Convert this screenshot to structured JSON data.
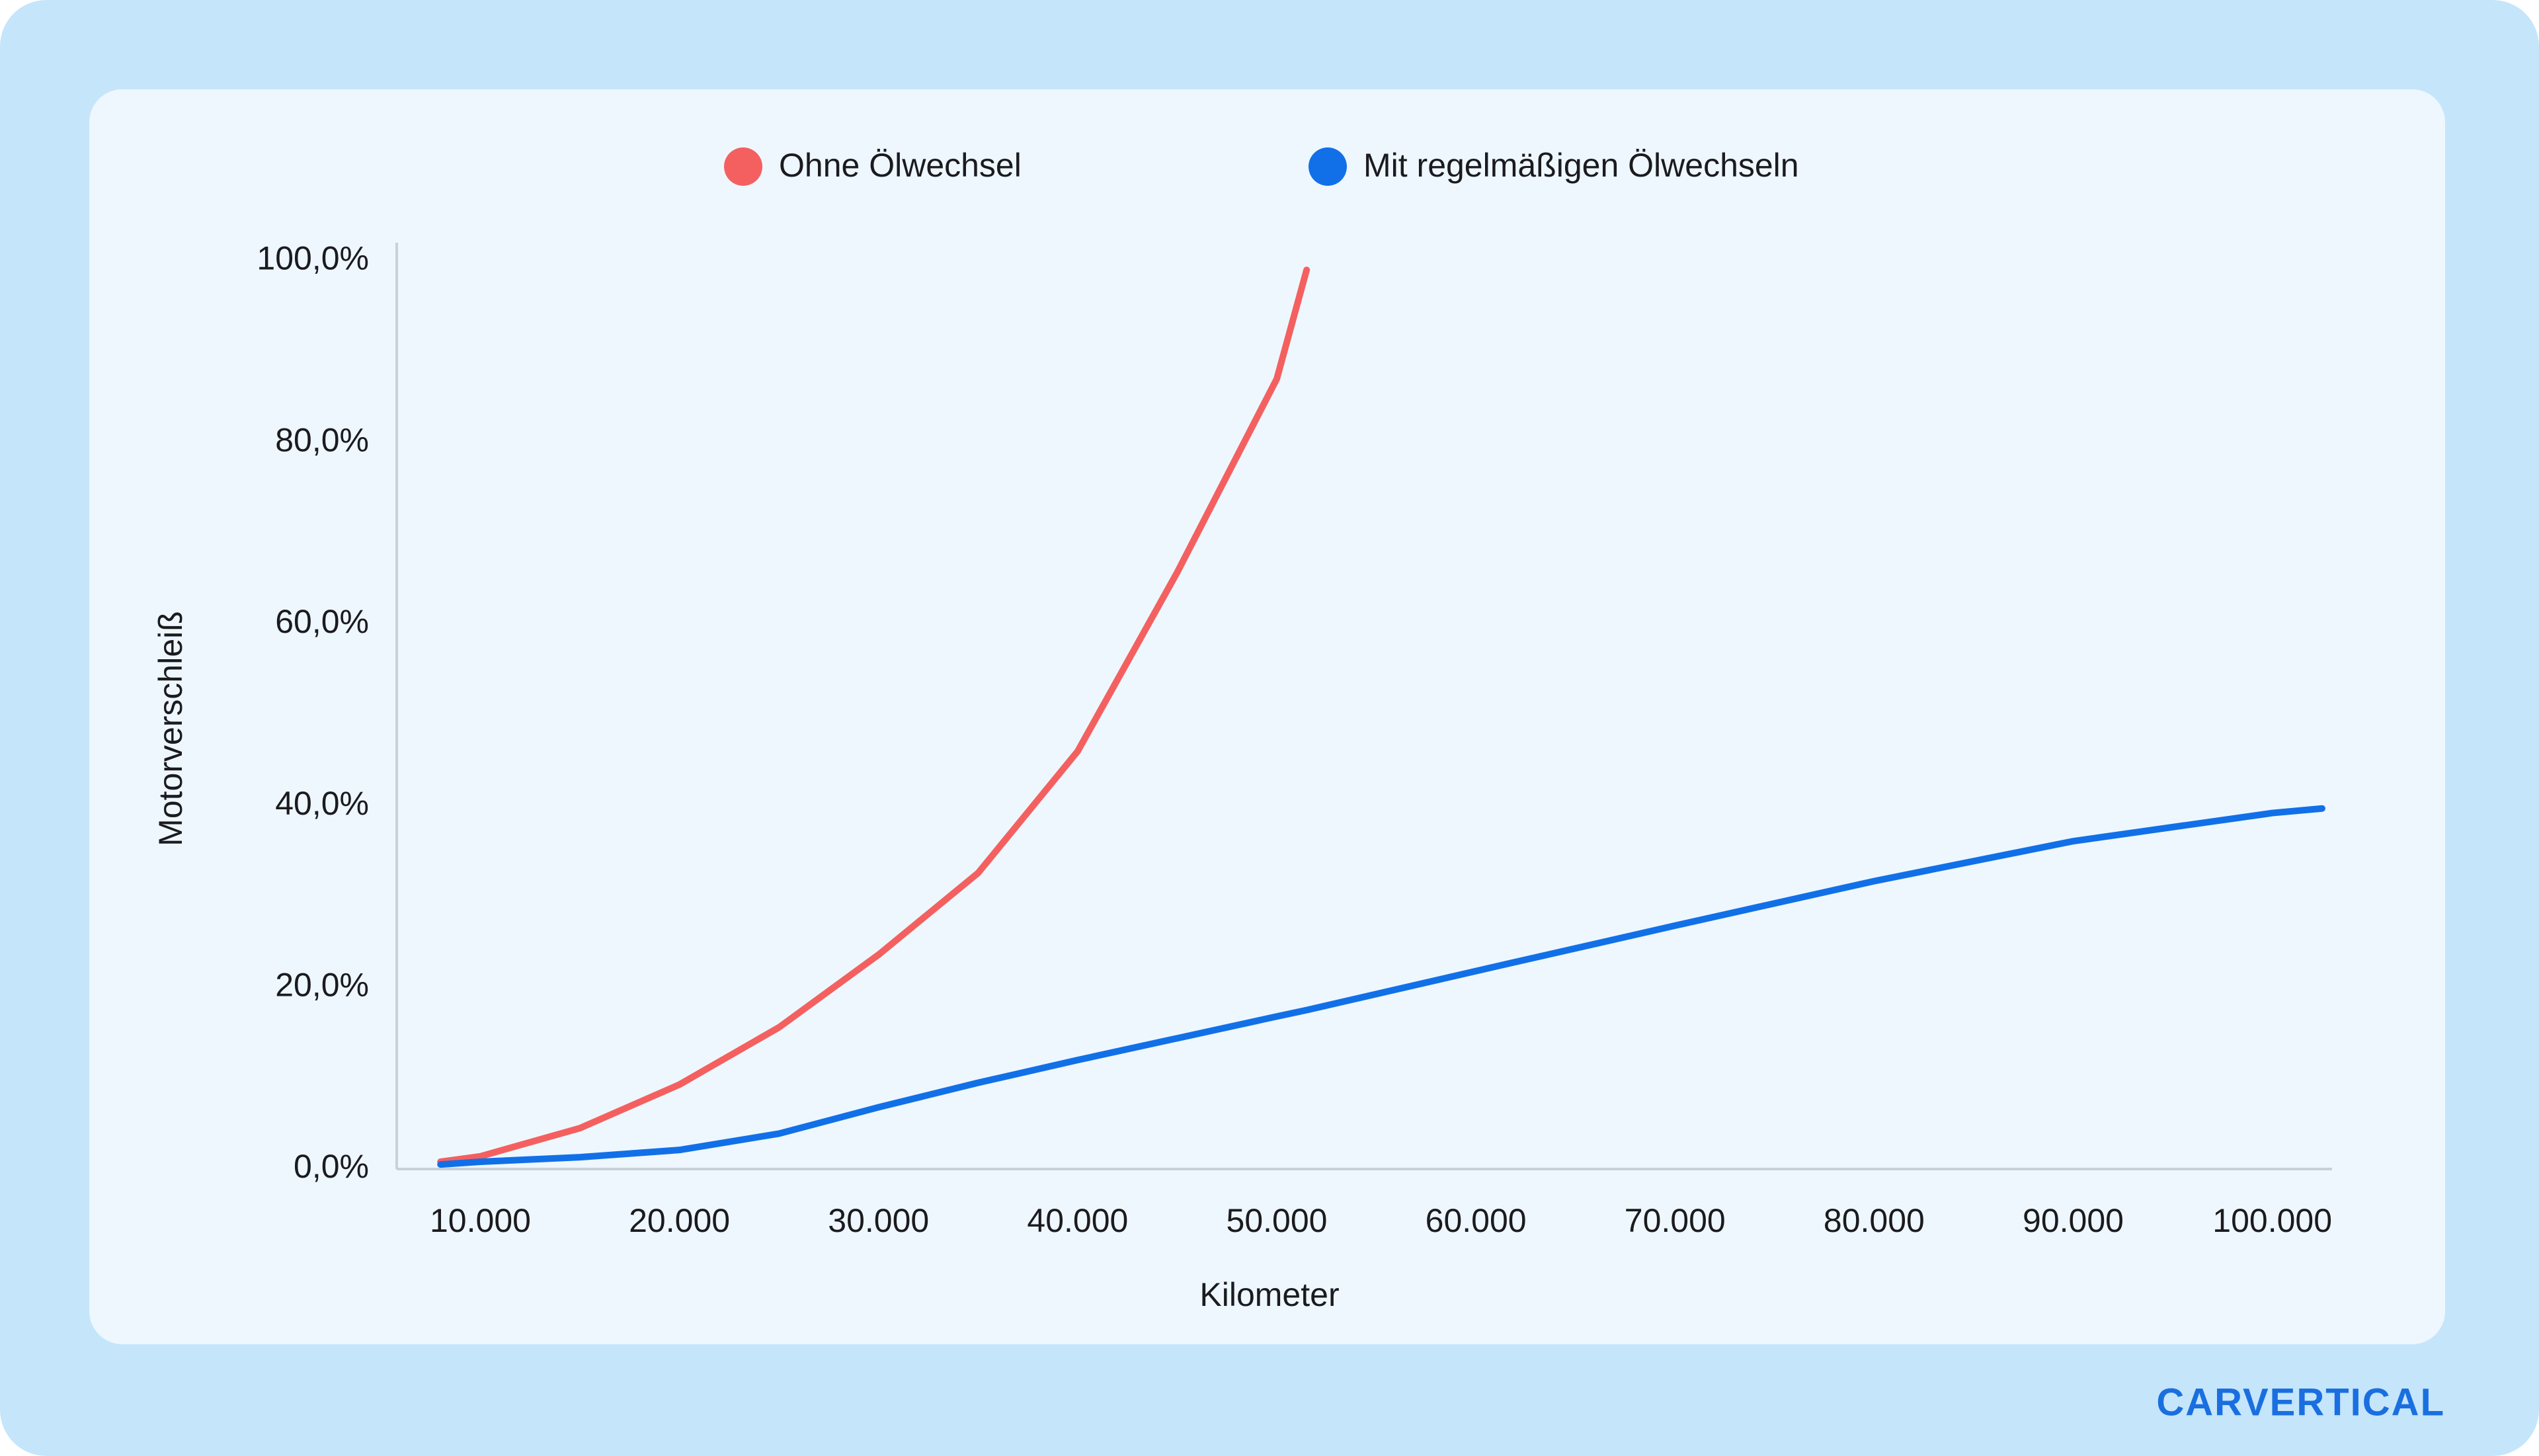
{
  "chart_data": {
    "type": "line",
    "y_label": "Motorverschleiß",
    "x_label": "Kilometer",
    "logo": "CARVERTICAL",
    "legend_position": "top",
    "grid": false,
    "x": [
      8000,
      10000,
      15000,
      20000,
      25000,
      30000,
      35000,
      40000,
      45000,
      50000,
      51500,
      60000,
      70000,
      80000,
      90000,
      100000,
      102500
    ],
    "series": [
      {
        "name": "Ohne Ölwechsel",
        "color": "#f46060",
        "values": [
          0.8,
          1.4,
          4.5,
          9.3,
          15.6,
          23.6,
          32.6,
          46,
          65.7,
          87,
          99,
          null,
          null,
          null,
          null,
          null,
          null
        ]
      },
      {
        "name": "Mit regelmäßigen Ölwechseln",
        "color": "#1170e8",
        "values": [
          0.5,
          0.8,
          1.3,
          2.1,
          3.9,
          6.8,
          9.5,
          12,
          14.4,
          16.8,
          17.5,
          21.8,
          26.8,
          31.7,
          36.1,
          39.2,
          39.7
        ]
      }
    ],
    "xlim": [
      5800,
      103000
    ],
    "xticks": [
      {
        "value": 10000,
        "label": "10.000"
      },
      {
        "value": 20000,
        "label": "20.000"
      },
      {
        "value": 30000,
        "label": "30.000"
      },
      {
        "value": 40000,
        "label": "40.000"
      },
      {
        "value": 50000,
        "label": "50.000"
      },
      {
        "value": 60000,
        "label": "60.000"
      },
      {
        "value": 70000,
        "label": "70.000"
      },
      {
        "value": 80000,
        "label": "80.000"
      },
      {
        "value": 90000,
        "label": "90.000"
      },
      {
        "value": 100000,
        "label": "100.000"
      }
    ],
    "ylim": [
      0,
      102
    ],
    "yticks": [
      {
        "value": 0,
        "label": "0,0%"
      },
      {
        "value": 20,
        "label": "20,0%"
      },
      {
        "value": 40,
        "label": "40,0%"
      },
      {
        "value": 60,
        "label": "60,0%"
      },
      {
        "value": 80,
        "label": "80,0%"
      },
      {
        "value": 100,
        "label": "100,0%"
      }
    ]
  }
}
